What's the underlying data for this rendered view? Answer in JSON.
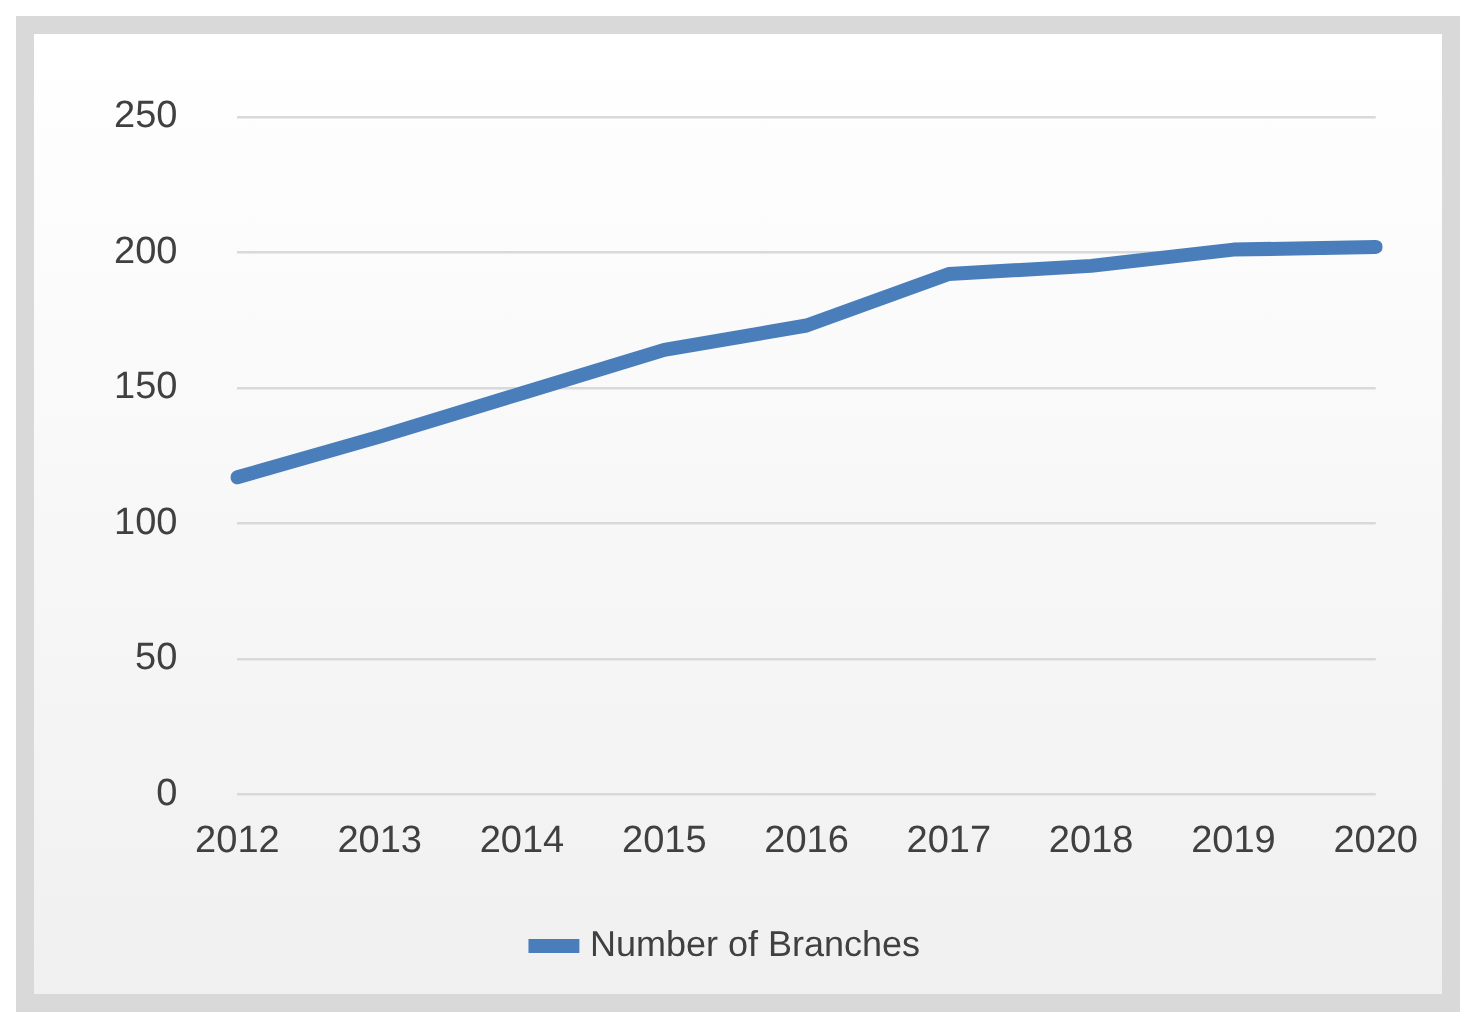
{
  "chart_data": {
    "type": "line",
    "categories": [
      "2012",
      "2013",
      "2014",
      "2015",
      "2016",
      "2017",
      "2018",
      "2019",
      "2020"
    ],
    "series": [
      {
        "name": "Number of Branches",
        "color": "#4a7ebb",
        "values": [
          117,
          132,
          148,
          164,
          173,
          192,
          195,
          201,
          202
        ]
      }
    ],
    "ylim": [
      0,
      250
    ],
    "yticks": [
      0,
      50,
      100,
      150,
      200,
      250
    ],
    "grid": "y",
    "legend": "bottom",
    "marker": "none",
    "line_style": "solid"
  }
}
